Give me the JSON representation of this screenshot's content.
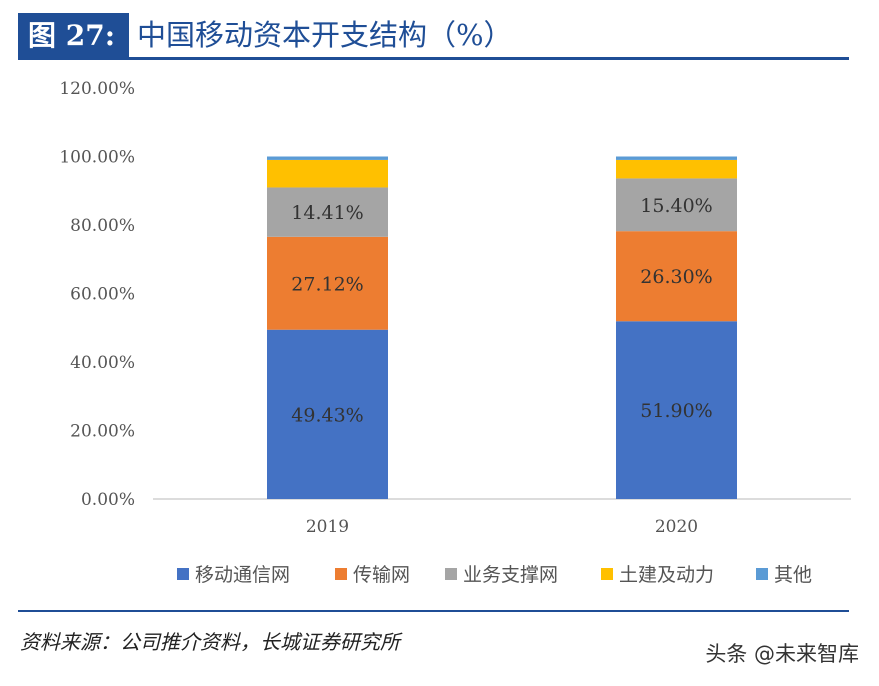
{
  "figure": {
    "label": "图 27:",
    "title": "中国移动资本开支结构（%）"
  },
  "source": "资料来源：公司推介资料，长城证券研究所",
  "watermark": "头条 @未来智库",
  "chart_data": {
    "type": "bar",
    "stacked": true,
    "categories": [
      "2019",
      "2020"
    ],
    "series": [
      {
        "name": "移动通信网",
        "color": "#4472c4",
        "values": [
          49.43,
          51.9
        ],
        "labels": [
          "49.43%",
          "51.90%"
        ]
      },
      {
        "name": "传输网",
        "color": "#ed7d31",
        "values": [
          27.12,
          26.3
        ],
        "labels": [
          "27.12%",
          "26.30%"
        ]
      },
      {
        "name": "业务支撑网",
        "color": "#a5a5a5",
        "values": [
          14.41,
          15.4
        ],
        "labels": [
          "14.41%",
          "15.40%"
        ]
      },
      {
        "name": "土建及动力",
        "color": "#ffc000",
        "values": [
          8.04,
          5.4
        ],
        "labels": [
          null,
          null
        ]
      },
      {
        "name": "其他",
        "color": "#5b9bd5",
        "values": [
          1.0,
          1.0
        ],
        "labels": [
          null,
          null
        ]
      }
    ],
    "ylim": [
      0,
      120
    ],
    "yticks": [
      "0.00%",
      "20.00%",
      "40.00%",
      "60.00%",
      "80.00%",
      "100.00%",
      "120.00%"
    ],
    "grid": false,
    "legend_position": "bottom"
  }
}
